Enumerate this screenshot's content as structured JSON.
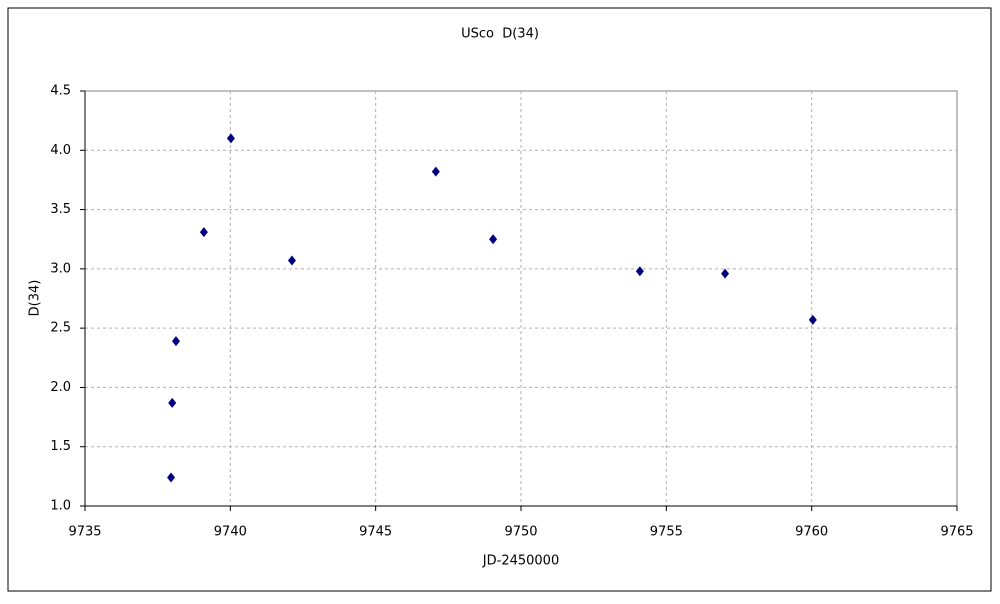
{
  "chart_data": {
    "type": "scatter",
    "title": "USco  D(34)",
    "x_label": "JD-2450000",
    "y_label": "D(34)",
    "series": [
      {
        "color": "#000080",
        "x": [
          9737.96,
          9738.0,
          9738.13,
          9739.09,
          9740.02,
          9742.12,
          9747.07,
          9749.04,
          9754.09,
          9757.02,
          9760.04
        ],
        "values": [
          1.24,
          1.87,
          2.39,
          3.31,
          4.1,
          3.07,
          3.82,
          3.25,
          2.98,
          2.96,
          2.57
        ]
      }
    ],
    "xlim": [
      9735,
      9765
    ],
    "xticks": [
      9735,
      9740,
      9745,
      9750,
      9755,
      9760,
      9765
    ],
    "ylim": [
      1.0,
      4.5
    ],
    "yticks": [
      {
        "value": 1.0,
        "label": "1.0"
      },
      1.5,
      {
        "value": 2.0,
        "label": "2.0"
      },
      2.5,
      {
        "value": 3.0,
        "label": "3.0"
      },
      3.5,
      {
        "value": 4.0,
        "label": "4.0"
      },
      4.5
    ],
    "grid": true
  }
}
